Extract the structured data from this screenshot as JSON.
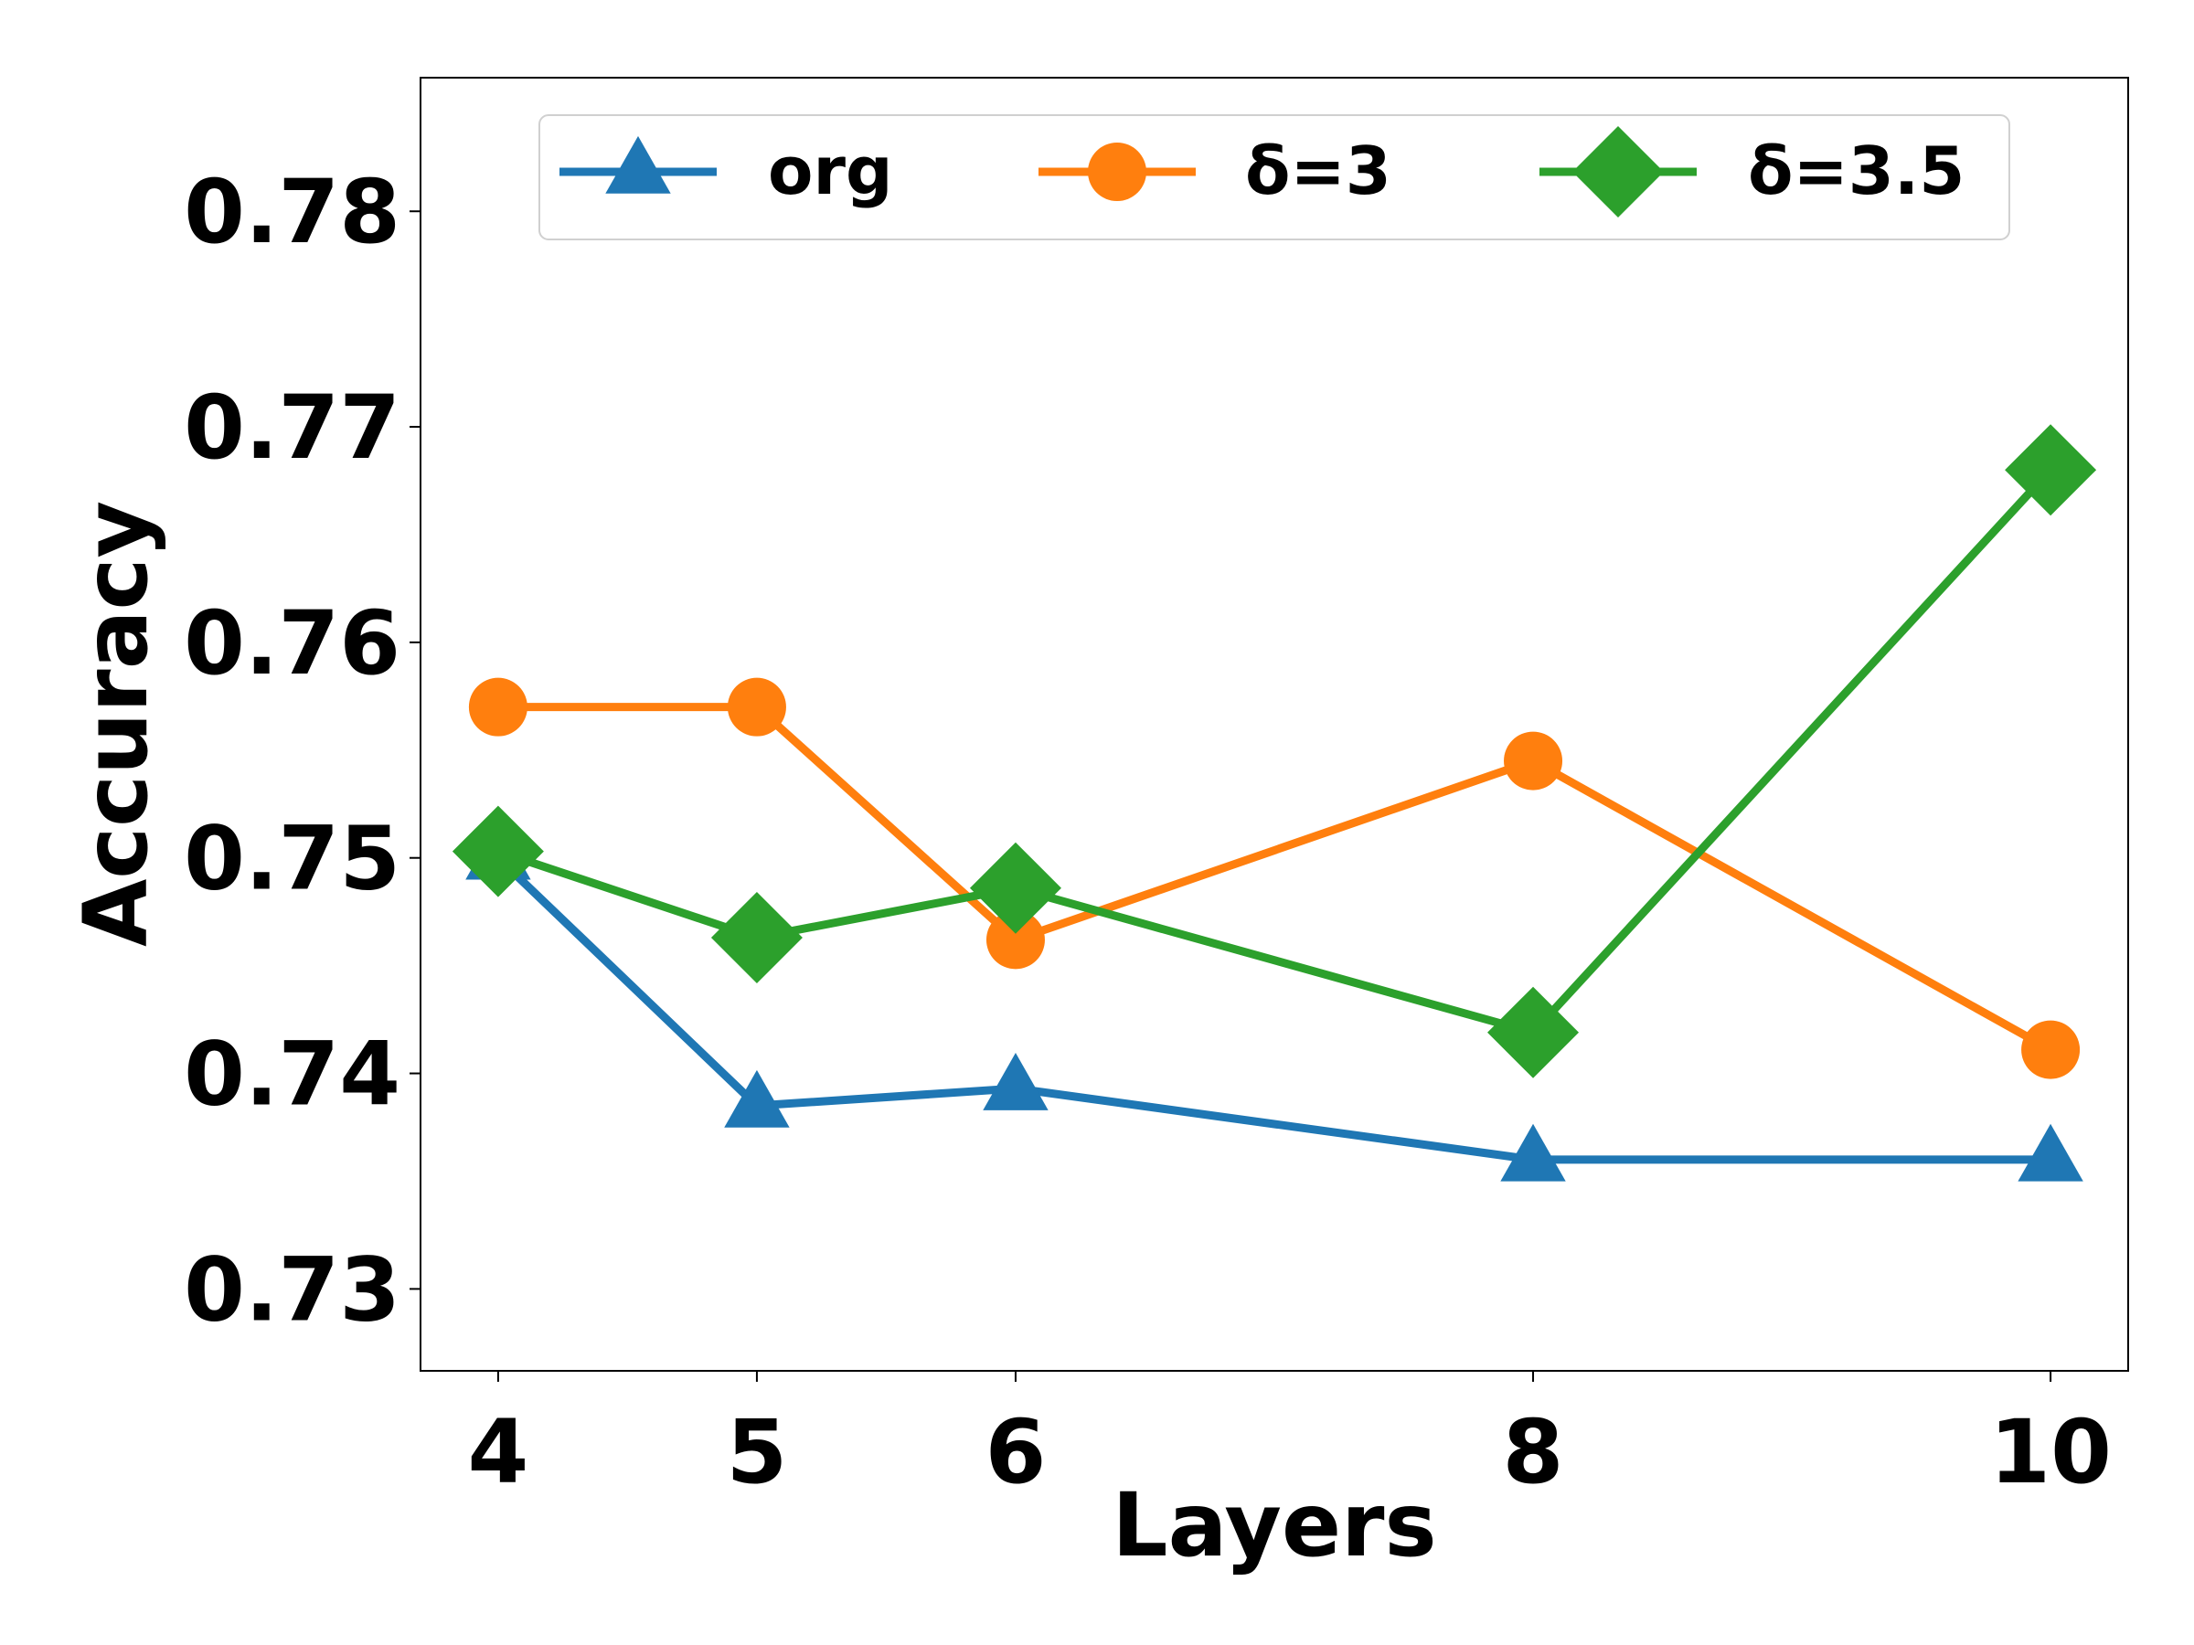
{
  "chart_data": {
    "type": "line",
    "xlabel": "Layers",
    "ylabel": "Accuracy",
    "x": [
      4,
      5,
      6,
      8,
      10
    ],
    "xticks": [
      "4",
      "5",
      "6",
      "8",
      "10"
    ],
    "xlim": [
      3.7,
      10.3
    ],
    "ylim": [
      0.7262,
      0.7862
    ],
    "yticks": [
      "0.73",
      "0.74",
      "0.75",
      "0.76",
      "0.77",
      "0.78"
    ],
    "ytick_values": [
      0.73,
      0.74,
      0.75,
      0.76,
      0.77,
      0.78
    ],
    "grid": false,
    "legend_position": "top",
    "series": [
      {
        "name": "org",
        "color": "#1f77b4",
        "marker": "triangle",
        "values": [
          0.75,
          0.7385,
          0.7393,
          0.736,
          0.736
        ]
      },
      {
        "name": "δ=3",
        "color": "#ff7f0e",
        "marker": "circle",
        "values": [
          0.757,
          0.757,
          0.7462,
          0.7545,
          0.7411
        ]
      },
      {
        "name": "δ=3.5",
        "color": "#2ca02c",
        "marker": "diamond",
        "values": [
          0.7503,
          0.7463,
          0.7486,
          0.7419,
          0.768
        ]
      }
    ]
  }
}
